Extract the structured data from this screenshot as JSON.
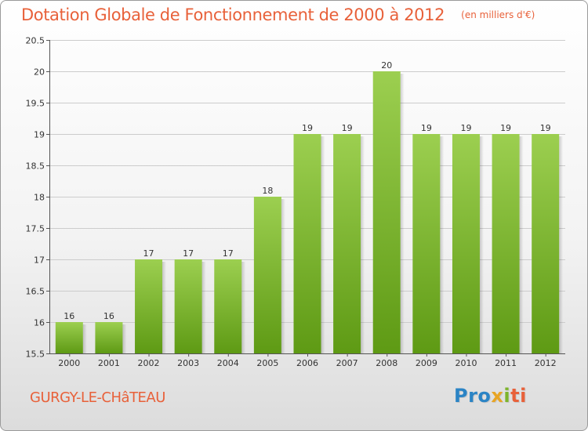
{
  "header": {
    "title": "Dotation Globale de Fonctionnement de 2000 à 2012",
    "subtitle": "(en milliers d'€)"
  },
  "footer": {
    "commune": "GURGY-LE-CHâTEAU",
    "logo": {
      "text": "Proxiti",
      "parts": [
        "Pro",
        "x",
        "i",
        "ti"
      ]
    }
  },
  "colors": {
    "accent": "#e8613a",
    "bar_top": "#9ccf50",
    "bar_bottom": "#5e9a14",
    "grid": "#cccccc",
    "axis": "#555555",
    "text": "#333333"
  },
  "chart_data": {
    "type": "bar",
    "title": "Dotation Globale de Fonctionnement de 2000 à 2012",
    "subtitle": "(en milliers d'€)",
    "xlabel": "",
    "ylabel": "",
    "categories": [
      "2000",
      "2001",
      "2002",
      "2003",
      "2004",
      "2005",
      "2006",
      "2007",
      "2008",
      "2009",
      "2010",
      "2011",
      "2012"
    ],
    "values": [
      16,
      16,
      17,
      17,
      17,
      18,
      19,
      19,
      20,
      19,
      19,
      19,
      19
    ],
    "data_labels": [
      "16",
      "16",
      "17",
      "17",
      "17",
      "18",
      "19",
      "19",
      "20",
      "19",
      "19",
      "19",
      "19"
    ],
    "ylim": [
      15.5,
      20.5
    ],
    "yticks": [
      15.5,
      16,
      16.5,
      17,
      17.5,
      18,
      18.5,
      19,
      19.5,
      20,
      20.5
    ],
    "ytick_labels": [
      "15.5",
      "16",
      "16.5",
      "17",
      "17.5",
      "18",
      "18.5",
      "19",
      "19.5",
      "20",
      "20.5"
    ],
    "grid": true,
    "legend": "none"
  }
}
